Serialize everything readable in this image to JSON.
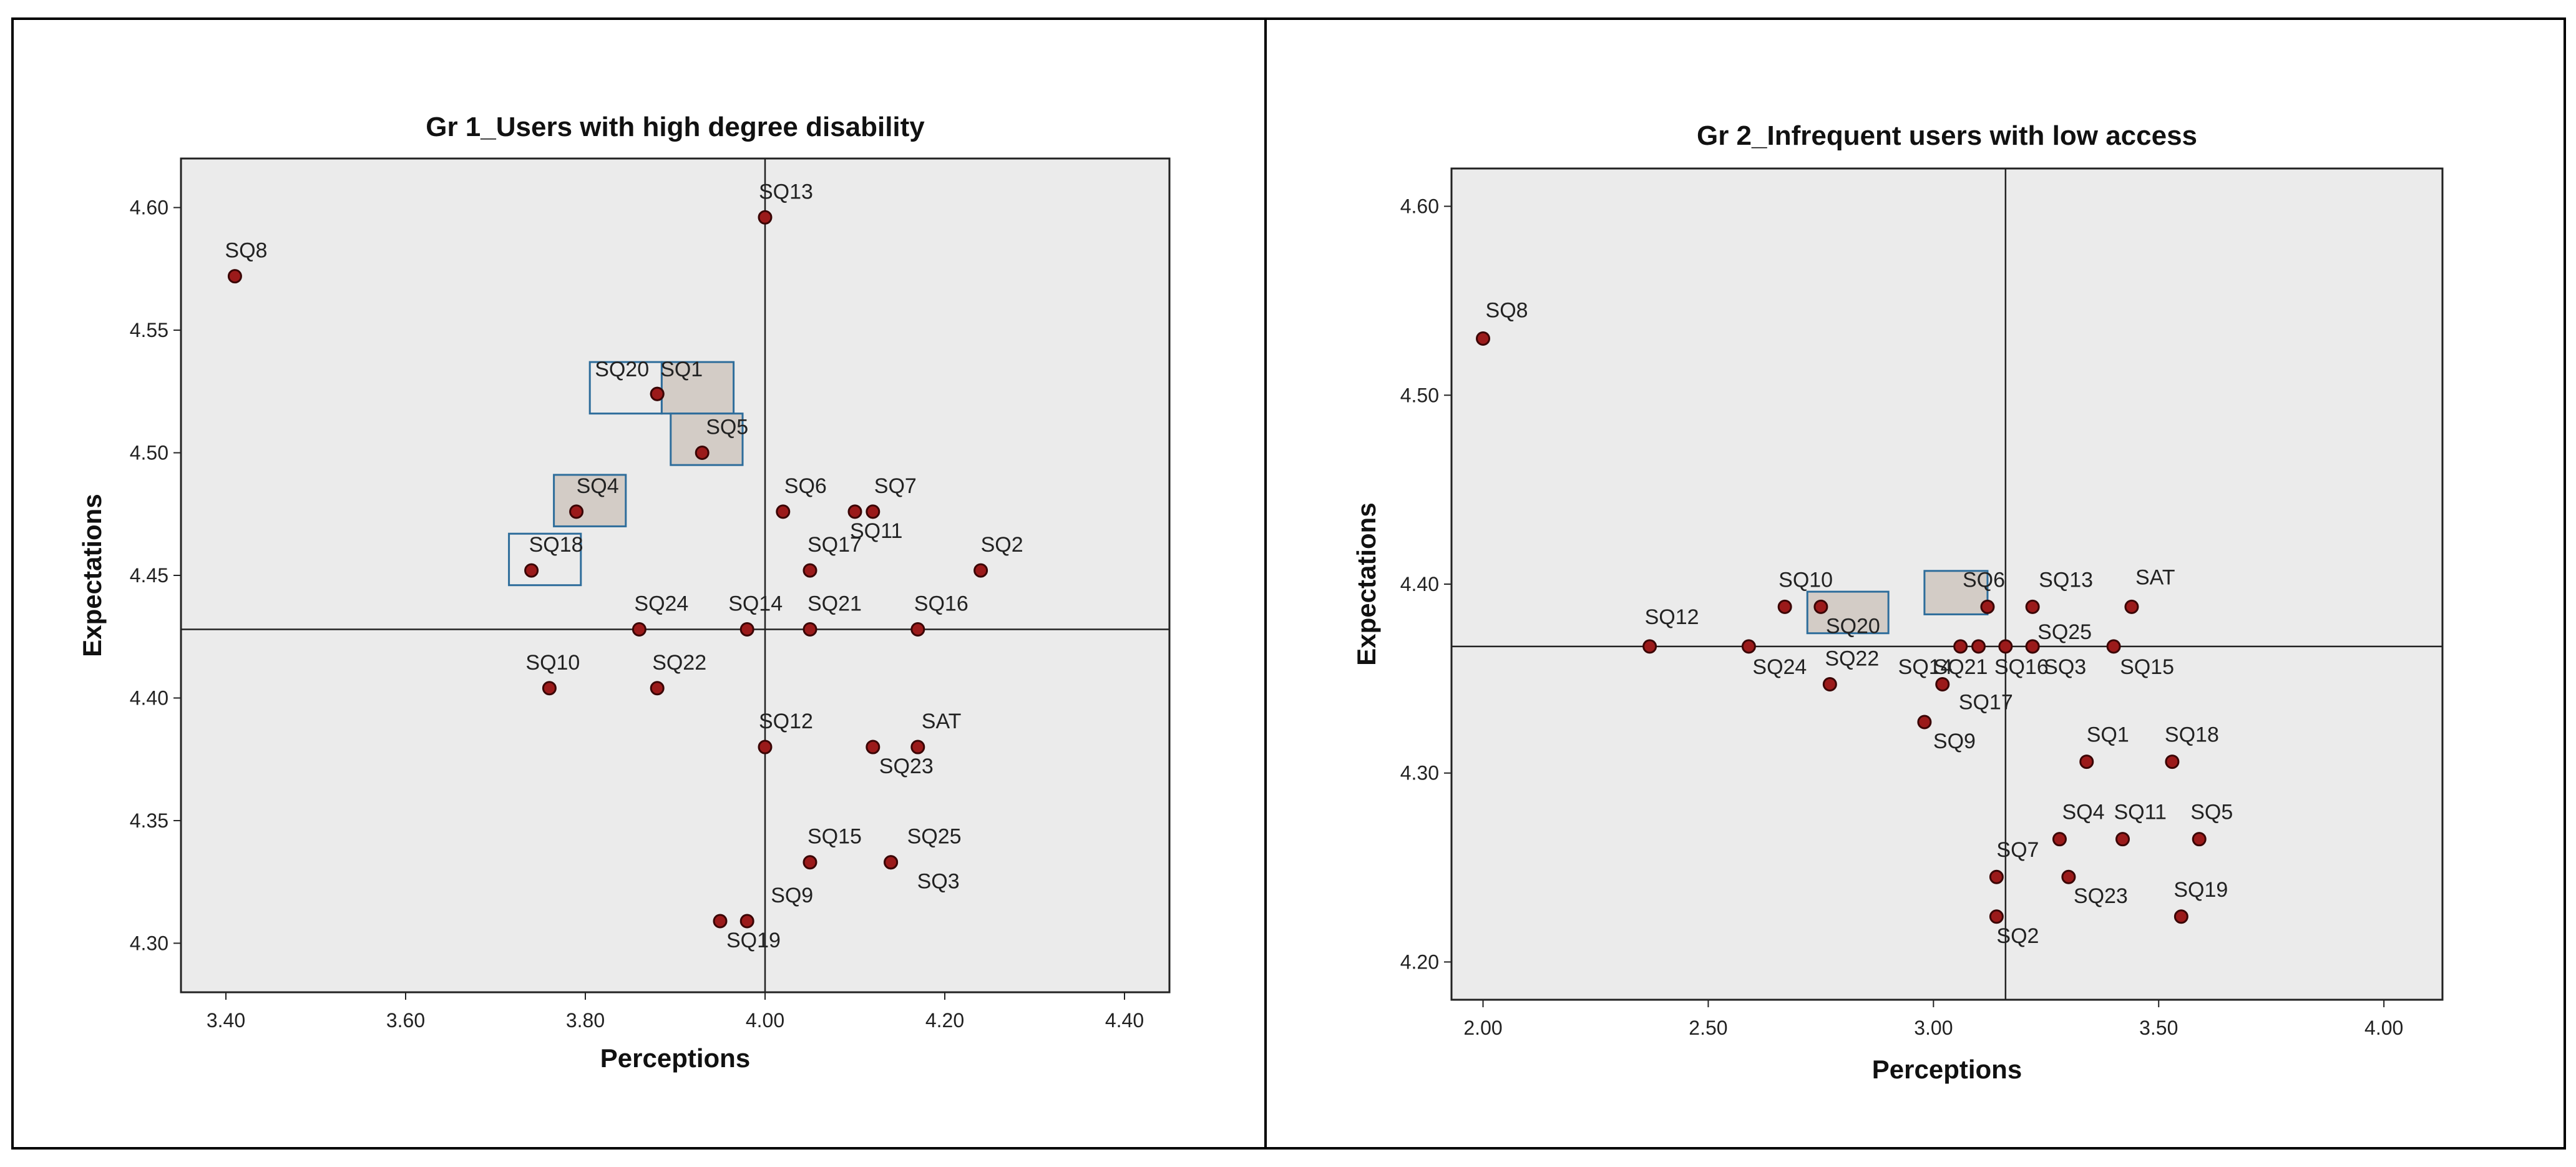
{
  "chart_data": [
    {
      "type": "scatter",
      "title": "Gr 1_Users with high degree disability",
      "xlabel": "Perceptions",
      "ylabel": "Expectations",
      "xlim": [
        3.35,
        4.45
      ],
      "ylim": [
        4.28,
        4.62
      ],
      "xticks": [
        3.4,
        3.6,
        3.8,
        4.0,
        4.2,
        4.4
      ],
      "xtick_labels": [
        "3.40",
        "3.60",
        "3.80",
        "4.00",
        "4.20",
        "4.40"
      ],
      "yticks": [
        4.3,
        4.35,
        4.4,
        4.45,
        4.5,
        4.55,
        4.6
      ],
      "ytick_labels": [
        "4.30",
        "4.35",
        "4.40",
        "4.45",
        "4.50",
        "4.55",
        "4.60"
      ],
      "ref_x": 4.0,
      "ref_y": 4.428,
      "points": [
        {
          "label": "SQ8",
          "x": 3.41,
          "y": 4.572
        },
        {
          "label": "SQ13",
          "x": 4.0,
          "y": 4.596
        },
        {
          "label": "SQ1",
          "x": 3.88,
          "y": 4.524
        },
        {
          "label": "SQ20",
          "x": 3.88,
          "y": 4.524
        },
        {
          "label": "SQ5",
          "x": 3.93,
          "y": 4.5
        },
        {
          "label": "SQ4",
          "x": 3.79,
          "y": 4.476
        },
        {
          "label": "SQ6",
          "x": 4.02,
          "y": 4.476
        },
        {
          "label": "SQ7",
          "x": 4.12,
          "y": 4.476
        },
        {
          "label": "SQ11",
          "x": 4.1,
          "y": 4.476
        },
        {
          "label": "SQ18",
          "x": 3.74,
          "y": 4.452
        },
        {
          "label": "SQ17",
          "x": 4.05,
          "y": 4.452
        },
        {
          "label": "SQ2",
          "x": 4.24,
          "y": 4.452
        },
        {
          "label": "SQ24",
          "x": 3.86,
          "y": 4.428
        },
        {
          "label": "SQ14",
          "x": 3.98,
          "y": 4.428
        },
        {
          "label": "SQ21",
          "x": 4.05,
          "y": 4.428
        },
        {
          "label": "SQ16",
          "x": 4.17,
          "y": 4.428
        },
        {
          "label": "SQ10",
          "x": 3.76,
          "y": 4.404
        },
        {
          "label": "SQ22",
          "x": 3.88,
          "y": 4.404
        },
        {
          "label": "SQ12",
          "x": 4.0,
          "y": 4.38
        },
        {
          "label": "SAT",
          "x": 4.17,
          "y": 4.38
        },
        {
          "label": "SQ23",
          "x": 4.12,
          "y": 4.38
        },
        {
          "label": "SQ15",
          "x": 4.05,
          "y": 4.333
        },
        {
          "label": "SQ25",
          "x": 4.14,
          "y": 4.333
        },
        {
          "label": "SQ3",
          "x": 4.14,
          "y": 4.333
        },
        {
          "label": "SQ9",
          "x": 3.98,
          "y": 4.309
        },
        {
          "label": "SQ19",
          "x": 3.95,
          "y": 4.309
        }
      ],
      "highlight_boxes": [
        {
          "label": "SQ20",
          "fill": "none"
        },
        {
          "label": "SQ1",
          "fill": "shaded"
        },
        {
          "label": "SQ5",
          "fill": "shaded"
        },
        {
          "label": "SQ4",
          "fill": "shaded"
        },
        {
          "label": "SQ18",
          "fill": "none"
        }
      ]
    },
    {
      "type": "scatter",
      "title": "Gr 2_Infrequent users with low access",
      "xlabel": "Perceptions",
      "ylabel": "Expectations",
      "xlim": [
        1.93,
        4.13
      ],
      "ylim": [
        4.18,
        4.62
      ],
      "xticks": [
        2.0,
        2.5,
        3.0,
        3.5,
        4.0
      ],
      "xtick_labels": [
        "2.00",
        "2.50",
        "3.00",
        "3.50",
        "4.00"
      ],
      "yticks": [
        4.2,
        4.3,
        4.4,
        4.5,
        4.6
      ],
      "ytick_labels": [
        "4.20",
        "4.30",
        "4.40",
        "4.50",
        "4.60"
      ],
      "ref_x": 3.16,
      "ref_y": 4.367,
      "points": [
        {
          "label": "SQ8",
          "x": 2.0,
          "y": 4.53
        },
        {
          "label": "SQ10",
          "x": 2.67,
          "y": 4.388
        },
        {
          "label": "SQ20",
          "x": 2.75,
          "y": 4.388
        },
        {
          "label": "SQ6",
          "x": 3.12,
          "y": 4.388
        },
        {
          "label": "SQ13",
          "x": 3.22,
          "y": 4.388
        },
        {
          "label": "SAT",
          "x": 3.44,
          "y": 4.388
        },
        {
          "label": "SQ12",
          "x": 2.37,
          "y": 4.367
        },
        {
          "label": "SQ24",
          "x": 2.59,
          "y": 4.367
        },
        {
          "label": "SQ14",
          "x": 3.06,
          "y": 4.367
        },
        {
          "label": "SQ21",
          "x": 3.1,
          "y": 4.367
        },
        {
          "label": "SQ16",
          "x": 3.16,
          "y": 4.367
        },
        {
          "label": "SQ25",
          "x": 3.22,
          "y": 4.367
        },
        {
          "label": "SQ3",
          "x": 3.22,
          "y": 4.367
        },
        {
          "label": "SQ15",
          "x": 3.4,
          "y": 4.367
        },
        {
          "label": "SQ22",
          "x": 2.77,
          "y": 4.347
        },
        {
          "label": "SQ17",
          "x": 3.02,
          "y": 4.347
        },
        {
          "label": "SQ9",
          "x": 2.98,
          "y": 4.327
        },
        {
          "label": "SQ1",
          "x": 3.34,
          "y": 4.306
        },
        {
          "label": "SQ18",
          "x": 3.53,
          "y": 4.306
        },
        {
          "label": "SQ4",
          "x": 3.28,
          "y": 4.265
        },
        {
          "label": "SQ11",
          "x": 3.42,
          "y": 4.265
        },
        {
          "label": "SQ5",
          "x": 3.59,
          "y": 4.265
        },
        {
          "label": "SQ7",
          "x": 3.14,
          "y": 4.245
        },
        {
          "label": "SQ23",
          "x": 3.3,
          "y": 4.245
        },
        {
          "label": "SQ2",
          "x": 3.14,
          "y": 4.224
        },
        {
          "label": "SQ19",
          "x": 3.55,
          "y": 4.224
        }
      ],
      "highlight_boxes": [
        {
          "label": "SQ20",
          "fill": "shaded"
        },
        {
          "label": "SQ6",
          "fill": "shaded"
        }
      ]
    }
  ],
  "colors": {
    "plot_bg": "#ebebeb",
    "point_fill": "#9b1a1a",
    "point_stroke": "#3a0505",
    "box_stroke": "#2e6d9b",
    "box_shaded": "#d3ccc6"
  }
}
